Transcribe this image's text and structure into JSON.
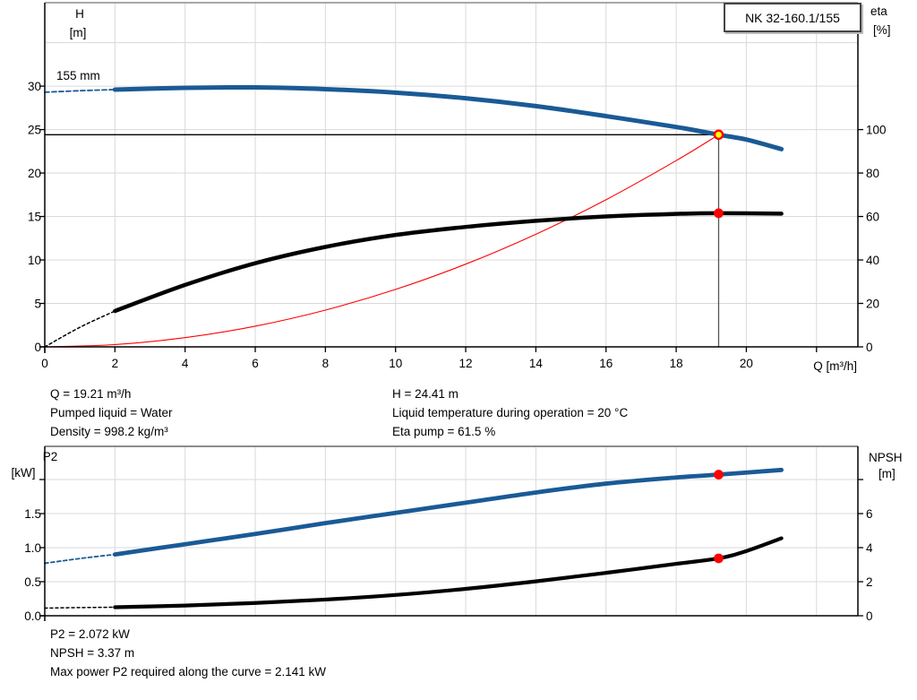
{
  "model_box": {
    "label": "NK 32-160.1/155"
  },
  "annotations": {
    "impeller_diameter": "155 mm"
  },
  "info_top_left": [
    "Q = 19.21 m³/h",
    "Pumped liquid = Water",
    "Density = 998.2 kg/m³"
  ],
  "info_top_right": [
    "H = 24.41 m",
    "Liquid temperature during operation = 20 °C",
    "Eta pump = 61.5 %"
  ],
  "info_bottom": [
    "P2 = 2.072 kW",
    "NPSH = 3.37 m",
    "Max power P2 required along the curve = 2.141 kW"
  ],
  "colors": {
    "blue": "#1a5a96",
    "red": "#ff0000",
    "black": "#000000",
    "yellow": "#ffff00",
    "grid": "#d9d9d9",
    "frame": "#8c8c8c",
    "duty_vertical": "#555555"
  },
  "duty_point": {
    "Q": 19.21,
    "H": 24.41,
    "eta": 61.5,
    "P2": 2.072,
    "NPSH": 3.37
  },
  "chart_data": [
    {
      "id": "head",
      "type": "line",
      "title": "Q/H performance curve with efficiency and system curve",
      "x_axis": {
        "label": "Q [m³/h]",
        "min": 0,
        "max": 23.18,
        "ticks": [
          {
            "v": 0,
            "t": "0"
          },
          {
            "v": 2,
            "t": "2"
          },
          {
            "v": 4,
            "t": "4"
          },
          {
            "v": 6,
            "t": "6"
          },
          {
            "v": 8,
            "t": "8"
          },
          {
            "v": 10,
            "t": "10"
          },
          {
            "v": 12,
            "t": "12"
          },
          {
            "v": 14,
            "t": "14"
          },
          {
            "v": 16,
            "t": "16"
          },
          {
            "v": 18,
            "t": "18"
          },
          {
            "v": 20,
            "t": "20"
          },
          {
            "v": 22,
            "t": ""
          }
        ],
        "grid": [
          2,
          4,
          6,
          8,
          10,
          12,
          14,
          16,
          18,
          20,
          22
        ]
      },
      "y_left": {
        "header": [
          "H",
          "[m]"
        ],
        "min": 0,
        "max": 39.6,
        "ticks": [
          {
            "v": 0,
            "t": "0"
          },
          {
            "v": 5,
            "t": "5"
          },
          {
            "v": 10,
            "t": "10"
          },
          {
            "v": 15,
            "t": "15"
          },
          {
            "v": 20,
            "t": "20"
          },
          {
            "v": 25,
            "t": "25"
          },
          {
            "v": 30,
            "t": "30"
          }
        ],
        "grid": [
          5,
          10,
          15,
          20,
          25,
          30,
          35
        ]
      },
      "y_right": {
        "header": [
          "eta",
          "[%]"
        ],
        "min": 0,
        "max": 158.4,
        "ticks": [
          {
            "v": 0,
            "t": "0"
          },
          {
            "v": 20,
            "t": "20"
          },
          {
            "v": 40,
            "t": "40"
          },
          {
            "v": 60,
            "t": "60"
          },
          {
            "v": 80,
            "t": "80"
          },
          {
            "v": 100,
            "t": "100"
          }
        ]
      },
      "series": [
        {
          "name": "head-curve-extrapolated",
          "axis": "left",
          "color": "blue",
          "width": 1.8,
          "dash": "5 3",
          "points": [
            [
              0,
              29.3
            ],
            [
              1,
              29.47
            ],
            [
              2,
              29.6
            ]
          ]
        },
        {
          "name": "system-curve",
          "axis": "left",
          "color": "red",
          "width": 1.1,
          "points": [
            [
              0,
              0
            ],
            [
              2,
              0.26
            ],
            [
              4,
              1.06
            ],
            [
              6,
              2.38
            ],
            [
              8,
              4.23
            ],
            [
              10,
              6.61
            ],
            [
              12,
              9.52
            ],
            [
              14,
              12.96
            ],
            [
              16,
              16.93
            ],
            [
              18,
              21.43
            ],
            [
              19.21,
              24.41
            ]
          ]
        },
        {
          "name": "efficiency-curve-extrapolated",
          "axis": "right",
          "color": "black",
          "width": 1.5,
          "dash": "3 3",
          "points": [
            [
              0,
              0
            ],
            [
              1,
              9
            ],
            [
              2,
              16.5
            ]
          ]
        },
        {
          "name": "head-curve",
          "axis": "left",
          "color": "blue",
          "width": 5,
          "points": [
            [
              2,
              29.6
            ],
            [
              4,
              29.8
            ],
            [
              6,
              29.85
            ],
            [
              8,
              29.65
            ],
            [
              10,
              29.25
            ],
            [
              12,
              28.6
            ],
            [
              14,
              27.7
            ],
            [
              16,
              26.55
            ],
            [
              18,
              25.3
            ],
            [
              19.21,
              24.41
            ],
            [
              20,
              23.85
            ],
            [
              21,
              22.75
            ]
          ]
        },
        {
          "name": "efficiency-curve",
          "axis": "right",
          "color": "black",
          "width": 4.5,
          "points": [
            [
              2,
              16.5
            ],
            [
              4,
              28.5
            ],
            [
              6,
              38.5
            ],
            [
              8,
              46
            ],
            [
              10,
              51.5
            ],
            [
              12,
              55.2
            ],
            [
              14,
              58
            ],
            [
              16,
              60
            ],
            [
              18,
              61.2
            ],
            [
              19.21,
              61.5
            ],
            [
              21,
              61.3
            ]
          ]
        }
      ],
      "duty_lines": [
        {
          "name": "duty-head-hline",
          "dir": "h",
          "axis": "left",
          "value": 24.41,
          "from": 0,
          "to": 19.21,
          "color": "black",
          "width": 1.3
        },
        {
          "name": "duty-flow-vline",
          "dir": "v",
          "axis": "left",
          "q": 19.21,
          "from": 0,
          "to": 24.41,
          "color": "duty_vertical",
          "width": 1.3
        }
      ],
      "markers": [
        {
          "name": "duty-point-marker",
          "q": 19.21,
          "axis": "left",
          "value": 24.41,
          "style": "ring"
        },
        {
          "name": "efficiency-duty-marker",
          "q": 19.21,
          "axis": "right",
          "value": 61.5,
          "style": "dot"
        }
      ]
    },
    {
      "id": "power",
      "type": "line",
      "title": "P2 and NPSH curves",
      "x_axis": {
        "label": "",
        "min": 0,
        "max": 23.18,
        "ticks": [],
        "grid": [
          2,
          4,
          6,
          8,
          10,
          12,
          14,
          16,
          18,
          20,
          22
        ]
      },
      "y_left": {
        "header": [
          "P2",
          "[kW]"
        ],
        "min": 0,
        "max": 2.487,
        "ticks": [
          {
            "v": 0,
            "t": "0.0"
          },
          {
            "v": 0.5,
            "t": "0.5"
          },
          {
            "v": 1,
            "t": "1.0"
          },
          {
            "v": 1.5,
            "t": "1.5"
          },
          {
            "v": 2,
            "t": ""
          }
        ],
        "grid": [
          0.5,
          1,
          1.5,
          2
        ]
      },
      "y_right": {
        "header": [
          "NPSH",
          "[m]"
        ],
        "min": 0,
        "max": 9.95,
        "ticks": [
          {
            "v": 0,
            "t": "0"
          },
          {
            "v": 2,
            "t": "2"
          },
          {
            "v": 4,
            "t": "4"
          },
          {
            "v": 6,
            "t": "6"
          },
          {
            "v": 8,
            "t": ""
          }
        ]
      },
      "series": [
        {
          "name": "p2-curve-extrapolated",
          "axis": "left",
          "color": "blue",
          "width": 1.8,
          "dash": "4 3",
          "points": [
            [
              0,
              0.77
            ],
            [
              1,
              0.84
            ],
            [
              2,
              0.9
            ]
          ]
        },
        {
          "name": "npsh-curve-extrapolated",
          "axis": "right",
          "color": "black",
          "width": 1.5,
          "dash": "3 3",
          "points": [
            [
              0,
              0.45
            ],
            [
              1,
              0.48
            ],
            [
              2,
              0.5
            ]
          ]
        },
        {
          "name": "p2-curve",
          "axis": "left",
          "color": "blue",
          "width": 4.8,
          "points": [
            [
              2,
              0.9
            ],
            [
              4,
              1.05
            ],
            [
              6,
              1.2
            ],
            [
              8,
              1.36
            ],
            [
              10,
              1.51
            ],
            [
              12,
              1.66
            ],
            [
              14,
              1.81
            ],
            [
              16,
              1.94
            ],
            [
              18,
              2.03
            ],
            [
              19.21,
              2.072
            ],
            [
              21,
              2.141
            ]
          ]
        },
        {
          "name": "npsh-curve",
          "axis": "right",
          "color": "black",
          "width": 4.2,
          "points": [
            [
              2,
              0.5
            ],
            [
              4,
              0.6
            ],
            [
              6,
              0.75
            ],
            [
              8,
              0.95
            ],
            [
              10,
              1.22
            ],
            [
              12,
              1.58
            ],
            [
              14,
              2.02
            ],
            [
              16,
              2.52
            ],
            [
              18,
              3.05
            ],
            [
              19.21,
              3.37
            ],
            [
              20,
              3.8
            ],
            [
              21,
              4.55
            ]
          ]
        }
      ],
      "duty_lines": [],
      "markers": [
        {
          "name": "p2-duty-marker",
          "q": 19.21,
          "axis": "left",
          "value": 2.072,
          "style": "dot"
        },
        {
          "name": "npsh-duty-marker",
          "q": 19.21,
          "axis": "right",
          "value": 3.37,
          "style": "dot"
        }
      ]
    }
  ]
}
